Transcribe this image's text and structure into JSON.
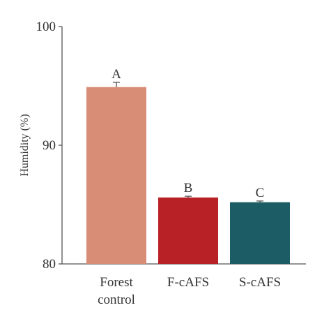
{
  "chart_data": {
    "type": "bar",
    "categories": [
      "Forest\ncontrol",
      "F-cAFS",
      "S-cAFS"
    ],
    "values": [
      94.9,
      85.6,
      85.2
    ],
    "errors": [
      0.4,
      0.1,
      0.1
    ],
    "significance": [
      "A",
      "B",
      "C"
    ],
    "colors": [
      "#d88d76",
      "#b82227",
      "#1c5c64"
    ],
    "ylabel": "Humidity (%)",
    "xlabel": "",
    "ylim": [
      80,
      100
    ],
    "yticks": [
      80,
      90,
      100
    ],
    "grid": false,
    "legend": "none"
  }
}
